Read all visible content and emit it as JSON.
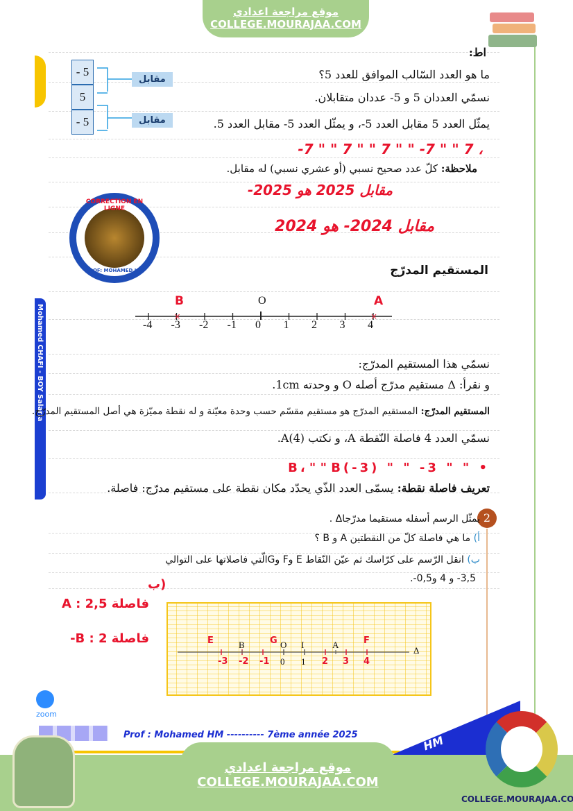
{
  "header": {
    "site_ar": "موقع مراجعة اعدادي",
    "site_url": "COLLEGE.MOURAJAA.COM"
  },
  "section1": {
    "title_fragment": "اط:",
    "question": "ما هو العدد السّالب الموافق للعدد 5؟",
    "line1": "نسمّي العددان 5 و 5- عددان متقابلان.",
    "line2": "يمثّل العدد 5 مقابل العدد 5-، و يمثّل العدد 5- مقابل العدد 5.",
    "boxes": [
      "- 5",
      "5",
      "- 5"
    ],
    "opposite_label": "مقابل",
    "handwritten_row": "، 7 \" \" 7- \" \" 7 \" \" 7 \" \" 7-",
    "note_label": "ملاحظة:",
    "note": "كلّ عدد صحيح نسبي (أو عشري نسبي) له مقابل.",
    "hw1": "مقابل 2025 هو 2025-",
    "hw2": "مقابل 2024- هو 2024"
  },
  "logo": {
    "top": "CORRECTION EN LIGNE",
    "bottom": "PROF: MOHAMED HM"
  },
  "section2": {
    "title": "المستقيم المدرّج",
    "axis_ticks": [
      "-4",
      "-3",
      "-2",
      "-1",
      "0",
      "1",
      "2",
      "3",
      "4"
    ],
    "origin": "O",
    "point_a": "A",
    "point_b": "B",
    "line1": "نسمّي هذا المستقيم المدرّج:",
    "line2": "و نقرأ: Δ مستقيم مدرّج أصله O و وحدته 1cm.",
    "def_label": "المستقيم المدرّج:",
    "def": "المستقيم المدرّج هو مستقيم مقسّم حسب وحدة معيّنة و له نقطة مميّزة هي أصل المستقيم المدرّج.",
    "line3": "نسمّي العدد 4 فاصلة النّقطة A، و نكتب A(4).",
    "hw": "• \" \" 3- \" \" B، \" \" B(-3)",
    "def2_label": "تعريف فاصلة نقطة:",
    "def2": "يسمّى العدد الذّي يحدّد مكان نقطة على مستقيم مدرّج: فاصلة."
  },
  "sidebar_text": "Mohamed CHAFI - BOY Salaria",
  "exercise": {
    "number": "2",
    "intro": "يمثّل الرسم أسفله مستقيما مدرّجاΔ .",
    "a_label": "أ)",
    "a": "ما هي فاصلة كلّ من النقطتين A و B ؟",
    "b_label": "ب)",
    "b": "انقل الرّسم على كرّاسك ثم عيّن النّقاط E وF وGالّتي فاصلاتها على التوالي",
    "b2": "3,5-  و 4  و0,5-.",
    "hw_b": "ب)",
    "ans_a": "فاصلة A : 2,5",
    "ans_b": "فاصلة B : 2-",
    "grid_labels": {
      "E": "E",
      "B": "B",
      "G": "G",
      "O": "O",
      "I": "I",
      "A": "A",
      "F": "F",
      "delta": "Δ"
    },
    "grid_ticks_print": [
      "0",
      "1"
    ],
    "grid_ticks_hw": [
      "-3",
      "-2",
      "-1",
      "2",
      "3",
      "4"
    ]
  },
  "footer": {
    "prof": "Prof : Mohamed HM ----------  7ème année 2025",
    "badge": "HM",
    "site_ar": "موقع مراجعة اعدادي",
    "site_url": "COLLEGE.MOURAJAA.COM",
    "corner_url": "COLLEGE.MOURAJAA.COM",
    "zoom": "zoom"
  },
  "colors": {
    "green": "#a8d08d",
    "red": "#e8132c",
    "blue": "#1b3fd1",
    "grid": "#f5c518"
  }
}
